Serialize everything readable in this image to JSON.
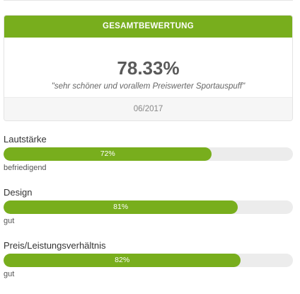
{
  "summary": {
    "header": "GESAMTBEWERTUNG",
    "score": "78.33%",
    "quote": "\"sehr schöner und vorallem Preiswerter Sportauspuff\"",
    "date": "06/2017"
  },
  "ratings": [
    {
      "label": "Lautstärke",
      "percent_text": "72%",
      "percent": 72,
      "verdict": "befriedigend"
    },
    {
      "label": "Design",
      "percent_text": "81%",
      "percent": 81,
      "verdict": "gut"
    },
    {
      "label": "Preis/Leistungsverhältnis",
      "percent_text": "82%",
      "percent": 82,
      "verdict": "gut"
    }
  ],
  "colors": {
    "accent": "#78ae1d",
    "track": "#ececec"
  }
}
